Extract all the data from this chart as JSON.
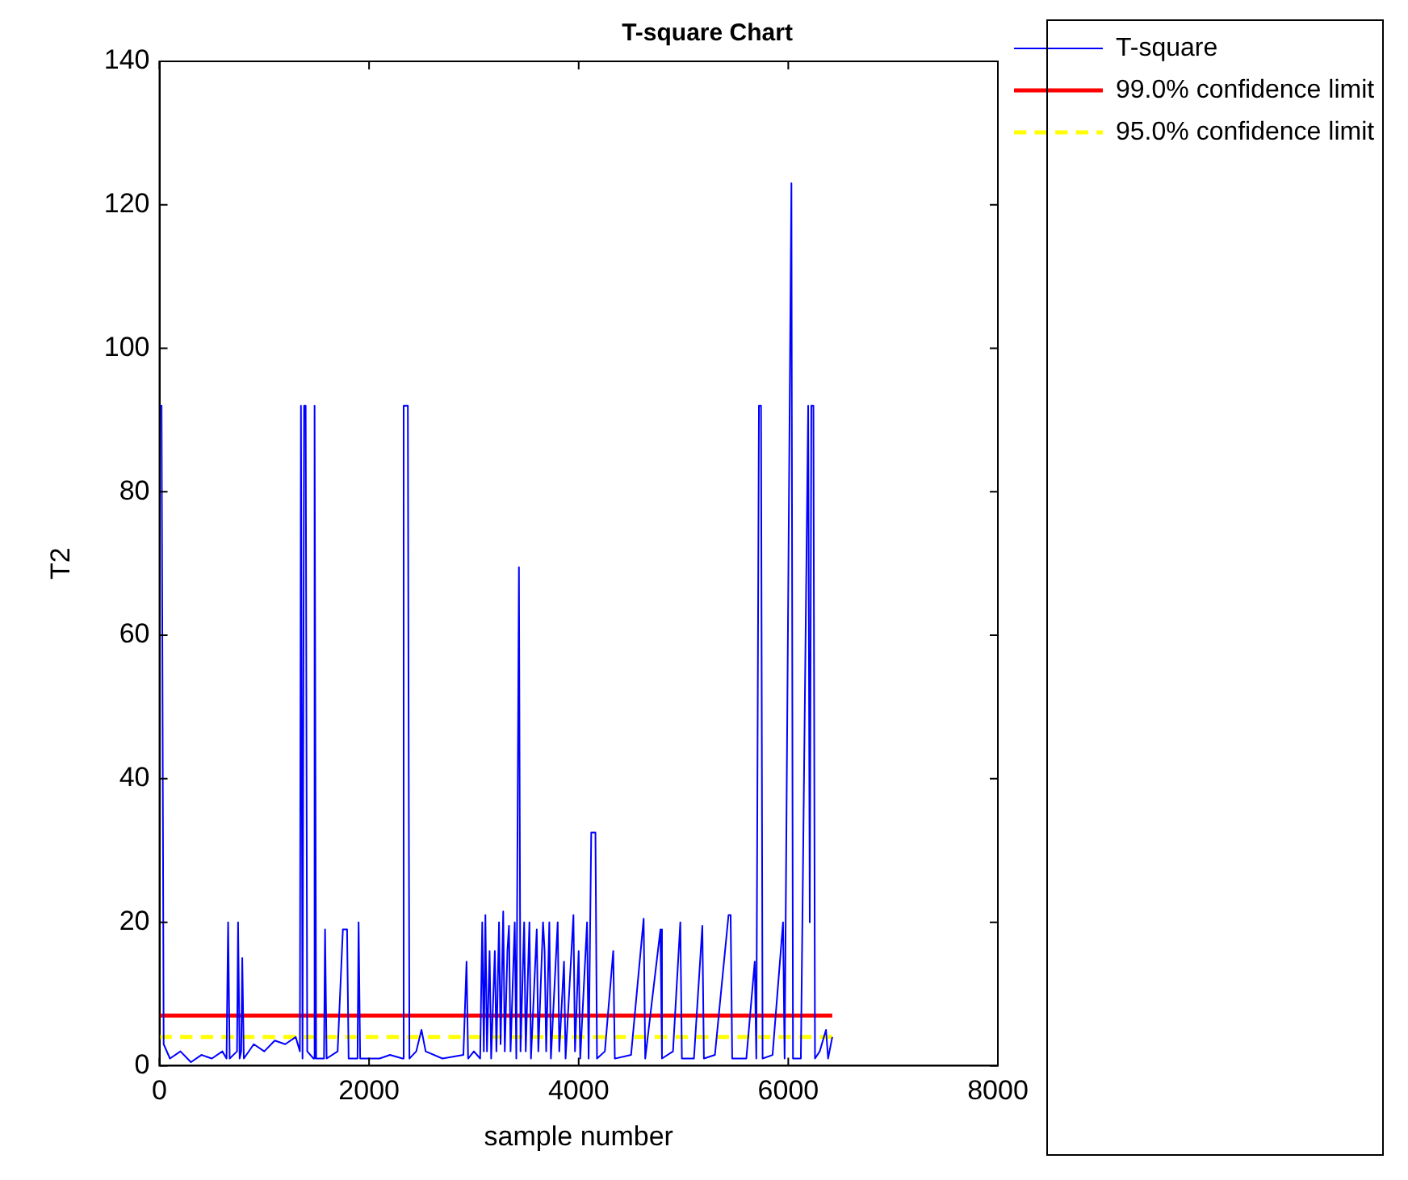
{
  "chart_data": {
    "type": "line",
    "title": "T-square Chart",
    "xlabel": "sample number",
    "ylabel": "T2",
    "xlim": [
      0,
      8000
    ],
    "xticks": [
      0,
      2000,
      4000,
      6000,
      8000
    ],
    "ylim": [
      0,
      140
    ],
    "yticks": [
      0,
      20,
      40,
      60,
      80,
      100,
      120,
      140
    ],
    "grid": false,
    "legend": "top right",
    "marker": "none",
    "series": [
      {
        "name": "T-square",
        "color": "#0000ff",
        "line_style": "solid",
        "x": [
          0,
          20,
          40,
          100,
          200,
          300,
          400,
          500,
          600,
          640,
          655,
          670,
          740,
          750,
          765,
          780,
          790,
          805,
          900,
          1000,
          1100,
          1200,
          1300,
          1340,
          1350,
          1365,
          1380,
          1395,
          1410,
          1470,
          1480,
          1495,
          1570,
          1580,
          1595,
          1700,
          1750,
          1790,
          1805,
          1890,
          1900,
          1915,
          2100,
          2200,
          2320,
          2330,
          2370,
          2385,
          2450,
          2500,
          2540,
          2700,
          2900,
          2930,
          2945,
          3000,
          3060,
          3080,
          3095,
          3110,
          3125,
          3150,
          3165,
          3200,
          3215,
          3240,
          3255,
          3280,
          3295,
          3320,
          3335,
          3350,
          3390,
          3405,
          3430,
          3445,
          3480,
          3495,
          3530,
          3545,
          3600,
          3615,
          3660,
          3675,
          3690,
          3720,
          3735,
          3800,
          3815,
          3860,
          3875,
          3950,
          3965,
          4000,
          4015,
          4080,
          4095,
          4120,
          4160,
          4175,
          4250,
          4330,
          4345,
          4500,
          4620,
          4635,
          4780,
          4795,
          4900,
          4970,
          4985,
          5100,
          5180,
          5195,
          5300,
          5430,
          5450,
          5465,
          5600,
          5680,
          5695,
          5720,
          5740,
          5755,
          5850,
          5950,
          5965,
          6030,
          6045,
          6120,
          6190,
          6205,
          6220,
          6240,
          6255,
          6300,
          6360,
          6380,
          6420
        ],
        "values": [
          92,
          92,
          3,
          1,
          2,
          0.5,
          1.5,
          1,
          2,
          1,
          20,
          1,
          2,
          20,
          1,
          2,
          15,
          1,
          3,
          2,
          3.5,
          3,
          4,
          2,
          92,
          1,
          92,
          92,
          2,
          1,
          92,
          1,
          1,
          19,
          1,
          2,
          19,
          19,
          1,
          1,
          20,
          1,
          1,
          1.5,
          1,
          92,
          92,
          1,
          2,
          5,
          2,
          1,
          1.5,
          14.5,
          1,
          2,
          1,
          20,
          2,
          21,
          2,
          16,
          1,
          16,
          2,
          20,
          3,
          21.5,
          2,
          16,
          19.5,
          2,
          20,
          1,
          69.5,
          2,
          20,
          2,
          20,
          1,
          19,
          2,
          20,
          16,
          2,
          20,
          1,
          20,
          2,
          14.5,
          1,
          21,
          2,
          16,
          1,
          20,
          1,
          32.5,
          32.5,
          1,
          2,
          16,
          1,
          1.5,
          20.5,
          1,
          19,
          1,
          2,
          20,
          1,
          1,
          19.5,
          1,
          1.5,
          21,
          21,
          1,
          1,
          14.5,
          1,
          92,
          92,
          1,
          1.5,
          20,
          1,
          123,
          1,
          1,
          92,
          20,
          92,
          92,
          1,
          2,
          5,
          1,
          4
        ]
      },
      {
        "name": "99.0% confidence limit",
        "color": "#ff0000",
        "line_style": "solid",
        "x": [
          0,
          6420
        ],
        "values": [
          7,
          7
        ]
      },
      {
        "name": "95.0% confidence limit",
        "color": "#ffff00",
        "line_style": "dashed",
        "x": [
          0,
          6420
        ],
        "values": [
          4,
          4
        ]
      }
    ]
  }
}
